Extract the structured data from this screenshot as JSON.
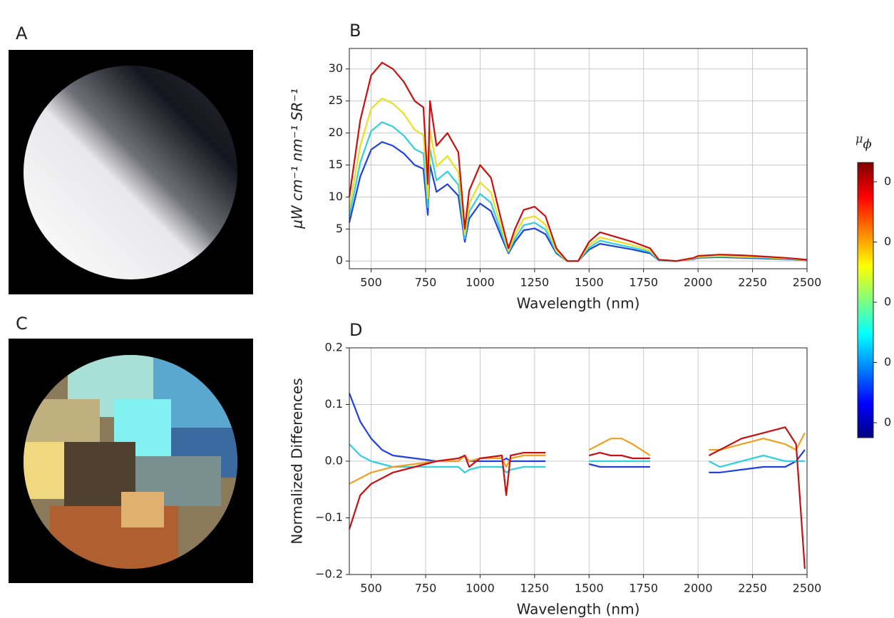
{
  "panels": {
    "a": {
      "label": "A"
    },
    "c": {
      "label": "C"
    }
  },
  "chart_data": [
    {
      "type": "line",
      "panel_label": "B",
      "xlabel": "Wavelength (nm)",
      "ylabel": "μW cm⁻¹ nm⁻¹ SR⁻¹",
      "x": [
        400,
        450,
        500,
        550,
        600,
        650,
        700,
        740,
        760,
        770,
        800,
        850,
        900,
        930,
        950,
        1000,
        1050,
        1100,
        1130,
        1160,
        1200,
        1250,
        1300,
        1350,
        1400,
        1450,
        1500,
        1550,
        1600,
        1700,
        1780,
        1820,
        1900,
        1980,
        2000,
        2100,
        2200,
        2300,
        2400,
        2500
      ],
      "series": [
        {
          "color": "#2040e0",
          "values": [
            6,
            13.2,
            17.4,
            18.6,
            18,
            16.8,
            15,
            14.4,
            7.2,
            15,
            10.8,
            12,
            10.2,
            3,
            6.6,
            9,
            7.8,
            3.6,
            1.2,
            3,
            4.8,
            5.1,
            4.2,
            1.2,
            0,
            0,
            1.8,
            2.7,
            2.4,
            1.8,
            1.2,
            0.1,
            0,
            0.3,
            0.5,
            0.6,
            0.5,
            0.4,
            0.3,
            0.1
          ]
        },
        {
          "color": "#30d0e0",
          "values": [
            7,
            15.4,
            20.3,
            21.7,
            21,
            19.6,
            17.5,
            16.8,
            8.4,
            17.5,
            12.6,
            14,
            11.9,
            3.5,
            7.7,
            10.5,
            9.1,
            4.2,
            1.4,
            3.5,
            5.6,
            6,
            4.9,
            1.4,
            0,
            0,
            2.1,
            3.2,
            2.8,
            2.1,
            1.4,
            0.1,
            0,
            0.4,
            0.6,
            0.7,
            0.6,
            0.5,
            0.4,
            0.1
          ]
        },
        {
          "color": "#e8e020",
          "values": [
            8.2,
            18,
            23.8,
            25.4,
            24.6,
            23,
            20.5,
            19.7,
            9.8,
            20.5,
            14.8,
            16.4,
            13.9,
            4.1,
            9,
            12.3,
            10.7,
            4.9,
            1.6,
            4.1,
            6.6,
            7,
            5.7,
            1.6,
            0,
            0,
            2.5,
            3.7,
            3.3,
            2.5,
            1.6,
            0.2,
            0,
            0.4,
            0.7,
            0.8,
            0.7,
            0.6,
            0.4,
            0.2
          ]
        },
        {
          "color": "#c81010",
          "values": [
            10,
            22,
            29,
            31,
            30,
            28,
            25,
            24,
            12,
            25,
            18,
            20,
            17,
            5,
            11,
            15,
            13,
            6,
            2,
            5,
            8,
            8.5,
            7,
            2,
            0,
            0,
            3,
            4.5,
            4,
            3,
            2,
            0.2,
            0,
            0.5,
            0.8,
            1,
            0.9,
            0.7,
            0.5,
            0.2
          ]
        }
      ],
      "xlim": [
        400,
        2500
      ],
      "xticks": [
        500,
        750,
        1000,
        1250,
        1500,
        1750,
        2000,
        2250,
        2500
      ],
      "ylim": [
        -1.2,
        33.2
      ],
      "yticks": [
        0,
        5,
        10,
        15,
        20,
        25,
        30
      ],
      "grid": true
    },
    {
      "type": "line",
      "panel_label": "D",
      "xlabel": "Wavelength (nm)",
      "ylabel": "Normalized Differences",
      "x": [
        400,
        450,
        500,
        550,
        600,
        700,
        800,
        900,
        930,
        950,
        1000,
        1100,
        1120,
        1140,
        1200,
        1300,
        1350,
        1450,
        1500,
        1550,
        1600,
        1650,
        1700,
        1780,
        1850,
        2000,
        2050,
        2100,
        2200,
        2300,
        2400,
        2450,
        2490
      ],
      "series": [
        {
          "color": "#2040e0",
          "values": [
            0.12,
            0.07,
            0.04,
            0.02,
            0.01,
            0.005,
            0,
            0,
            0.01,
            0,
            0,
            0,
            0.005,
            0,
            0,
            0,
            null,
            null,
            -0.005,
            -0.01,
            -0.01,
            -0.01,
            -0.01,
            -0.01,
            null,
            null,
            -0.02,
            -0.02,
            -0.015,
            -0.01,
            -0.01,
            0,
            0.02
          ]
        },
        {
          "color": "#30d0e0",
          "values": [
            0.03,
            0.01,
            0,
            -0.005,
            -0.01,
            -0.01,
            -0.01,
            -0.01,
            -0.02,
            -0.015,
            -0.01,
            -0.01,
            -0.02,
            -0.015,
            -0.01,
            -0.01,
            null,
            null,
            0,
            0,
            0,
            0,
            0,
            0,
            null,
            null,
            0,
            -0.01,
            0,
            0.01,
            0,
            0,
            0
          ]
        },
        {
          "color": "#f0a020",
          "values": [
            -0.04,
            -0.03,
            -0.02,
            -0.015,
            -0.01,
            -0.005,
            0,
            0,
            0.01,
            0,
            0.005,
            0.005,
            -0.01,
            0.005,
            0.01,
            0.01,
            null,
            null,
            0.02,
            0.03,
            0.04,
            0.04,
            0.03,
            0.01,
            null,
            null,
            0.02,
            0.02,
            0.03,
            0.04,
            0.03,
            0.02,
            0.05
          ]
        },
        {
          "color": "#c81010",
          "values": [
            -0.12,
            -0.06,
            -0.04,
            -0.03,
            -0.02,
            -0.01,
            0,
            0.005,
            0.01,
            -0.01,
            0.005,
            0.01,
            -0.06,
            0.01,
            0.015,
            0.015,
            null,
            null,
            0.01,
            0.015,
            0.01,
            0.01,
            0.005,
            0.005,
            null,
            null,
            0.01,
            0.02,
            0.04,
            0.05,
            0.06,
            0.03,
            -0.19
          ]
        }
      ],
      "xlim": [
        400,
        2500
      ],
      "xticks": [
        500,
        750,
        1000,
        1250,
        1500,
        1750,
        2000,
        2250,
        2500
      ],
      "ylim": [
        -0.2,
        0.2
      ],
      "yticks": [
        {
          "value": -0.2,
          "label": "−0.2"
        },
        {
          "value": -0.1,
          "label": "−0.1"
        },
        {
          "value": 0,
          "label": "0.0"
        },
        0.1,
        0.2
      ],
      "grid": true
    }
  ],
  "colorbar": {
    "label": "μ",
    "subscript": "ϕ",
    "colormap": [
      "#00007f",
      "#0000ff",
      "#0080ff",
      "#00ffff",
      "#80ff80",
      "#ffff00",
      "#ff8000",
      "#ff0000",
      "#7f0000"
    ],
    "tick_labels": [
      "0",
      "0",
      "0",
      "0",
      "0"
    ]
  }
}
